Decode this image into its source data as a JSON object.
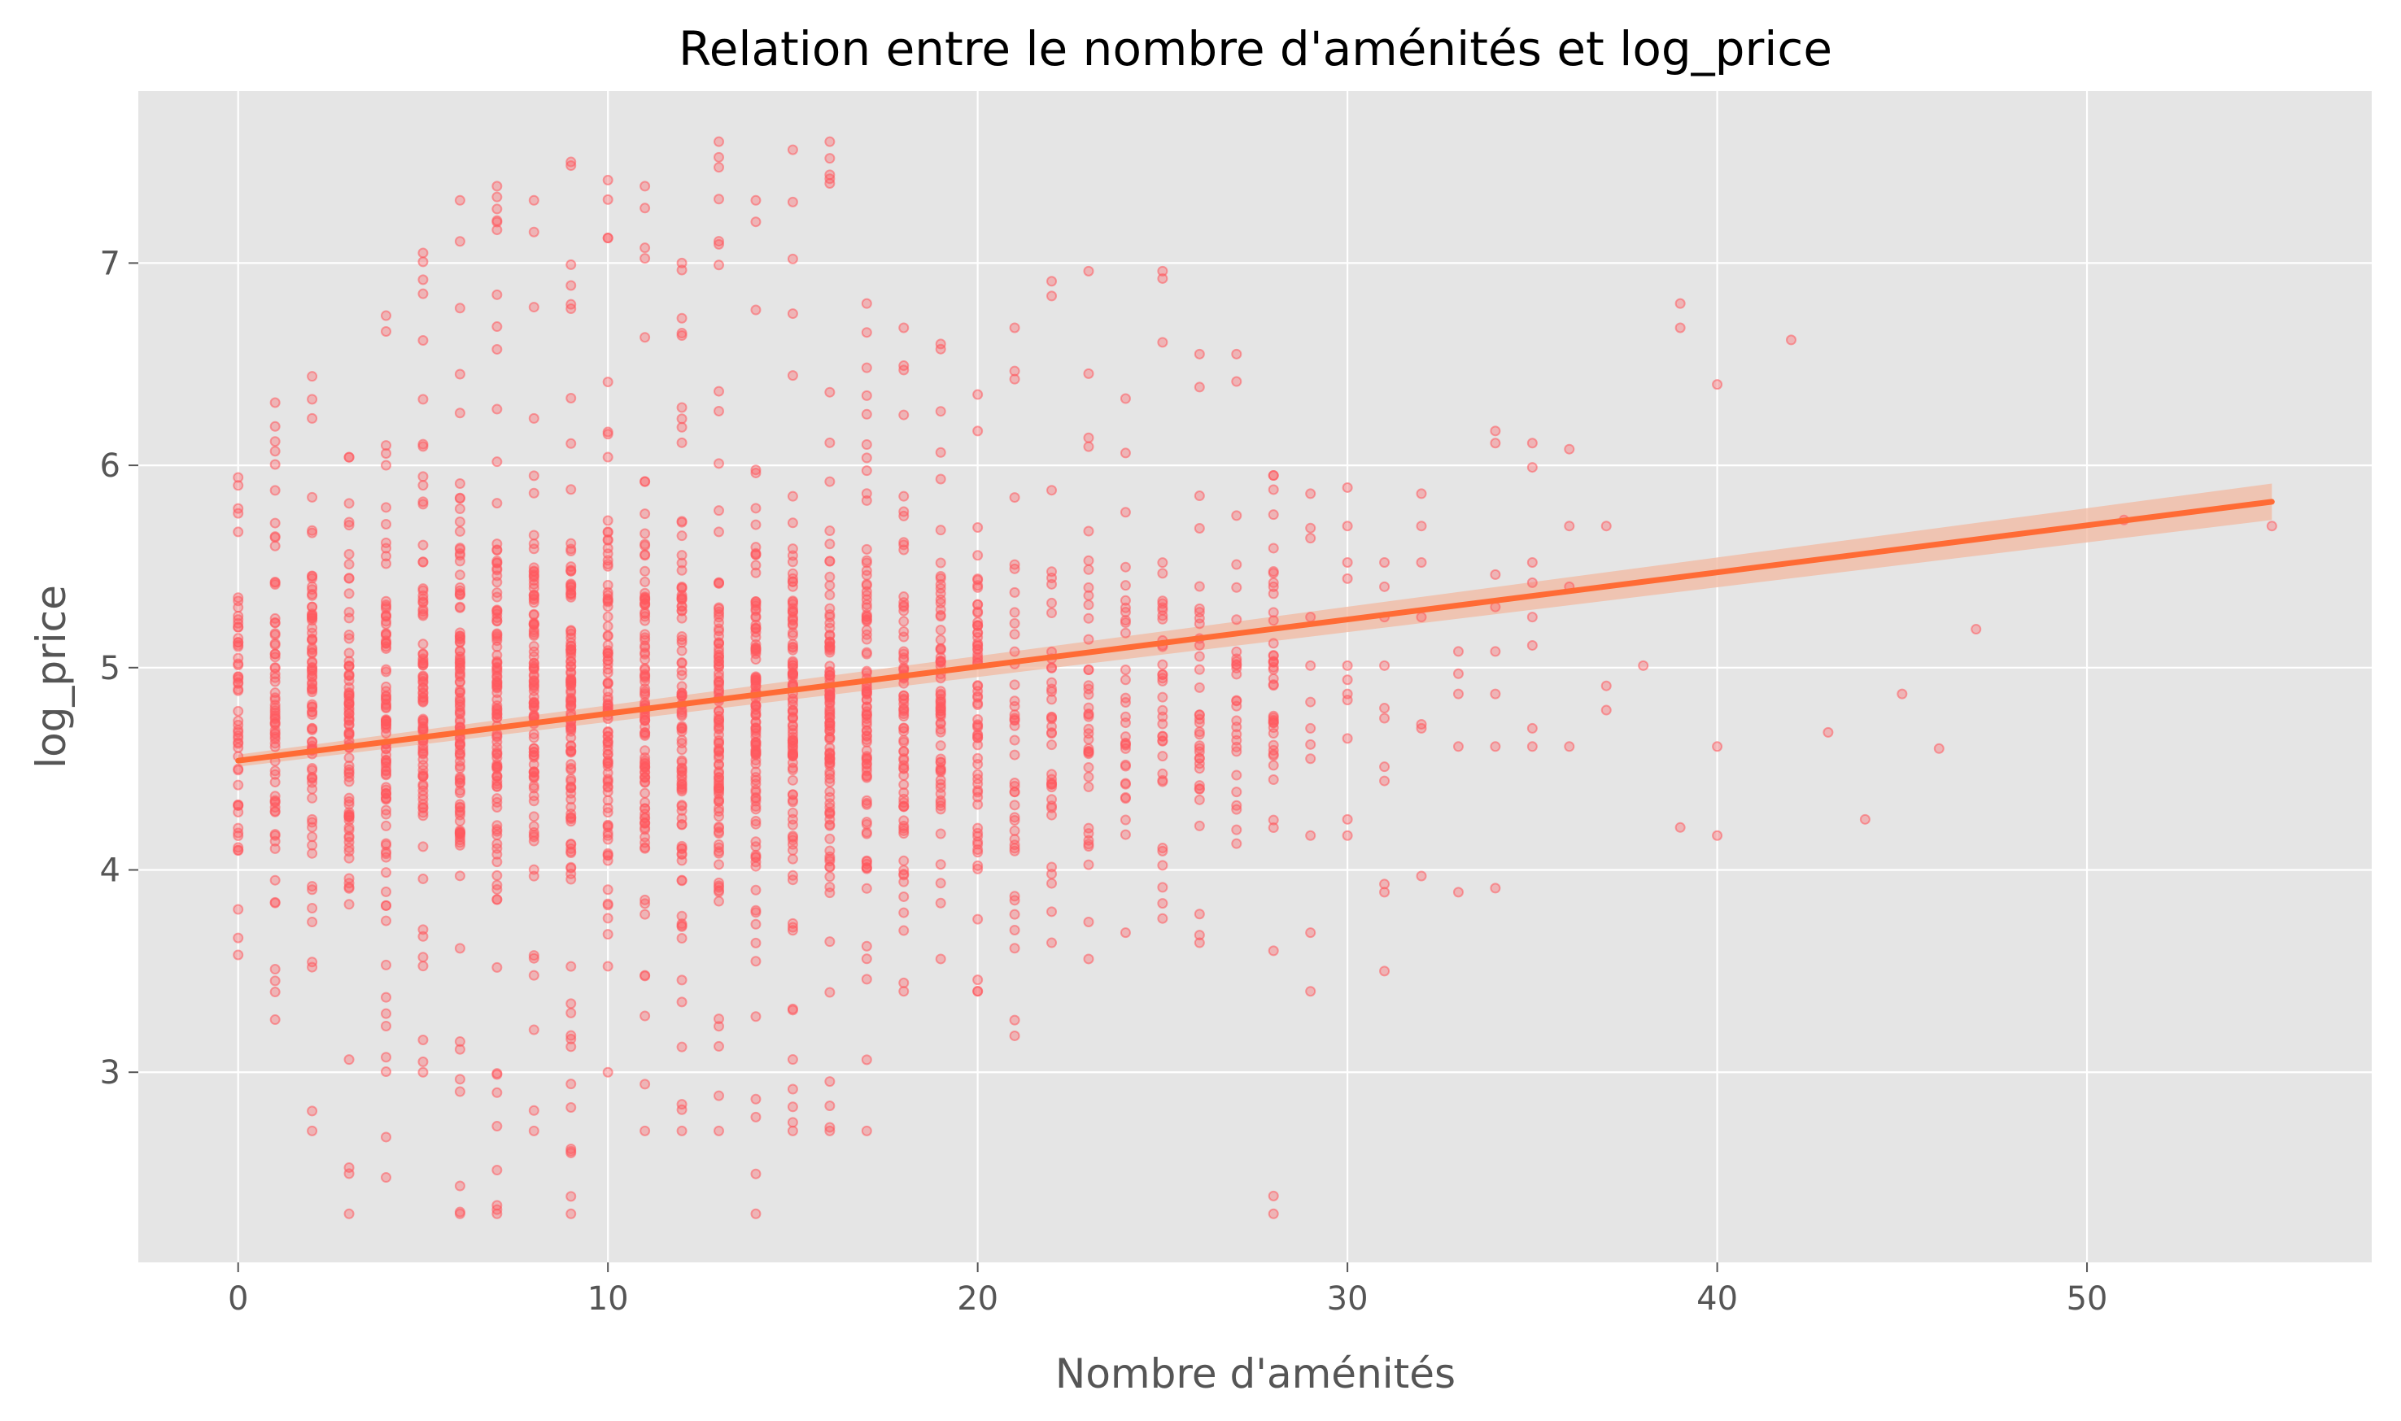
{
  "chart_data": {
    "type": "scatter",
    "title": "Relation entre le nombre d'aménités et log_price",
    "xlabel": "Nombre d'aménités",
    "ylabel": "log_price",
    "xlim": [
      -2.7,
      57.7
    ],
    "ylim": [
      2.06,
      7.85
    ],
    "x_ticks": [
      0,
      10,
      20,
      30,
      40,
      50
    ],
    "y_ticks": [
      3,
      4,
      5,
      6,
      7
    ],
    "grid": true,
    "colors": {
      "background": "#e5e5e5",
      "points": "#ff5a5f",
      "regression_line": "#ff6b35",
      "confidence_band": "#f2b8a0"
    },
    "regression": {
      "x": [
        0,
        55
      ],
      "y": [
        4.54,
        5.82
      ],
      "ci_lower": [
        4.51,
        5.73
      ],
      "ci_upper": [
        4.57,
        5.91
      ]
    },
    "columns": [
      {
        "x": 0,
        "min": 3.58,
        "max": 5.94
      },
      {
        "x": 1,
        "min": 3.26,
        "max": 6.31
      },
      {
        "x": 2,
        "min": 2.71,
        "max": 6.44
      },
      {
        "x": 3,
        "min": 2.3,
        "max": 6.04
      },
      {
        "x": 4,
        "min": 2.48,
        "max": 6.74
      },
      {
        "x": 5,
        "min": 3.0,
        "max": 7.05
      },
      {
        "x": 6,
        "min": 2.3,
        "max": 7.31
      },
      {
        "x": 7,
        "min": 2.3,
        "max": 7.38
      },
      {
        "x": 8,
        "min": 2.71,
        "max": 7.31
      },
      {
        "x": 9,
        "min": 2.3,
        "max": 7.5
      },
      {
        "x": 10,
        "min": 3.0,
        "max": 7.41
      },
      {
        "x": 11,
        "min": 2.71,
        "max": 7.38
      },
      {
        "x": 12,
        "min": 2.71,
        "max": 7.0
      },
      {
        "x": 13,
        "min": 2.71,
        "max": 7.6
      },
      {
        "x": 14,
        "min": 2.3,
        "max": 7.31
      },
      {
        "x": 15,
        "min": 2.71,
        "max": 7.56
      },
      {
        "x": 16,
        "min": 2.71,
        "max": 7.6
      },
      {
        "x": 17,
        "min": 2.71,
        "max": 6.8
      },
      {
        "x": 18,
        "min": 3.4,
        "max": 6.68
      },
      {
        "x": 19,
        "min": 3.56,
        "max": 6.6
      },
      {
        "x": 20,
        "min": 3.4,
        "max": 6.35
      },
      {
        "x": 21,
        "min": 3.18,
        "max": 6.68
      },
      {
        "x": 22,
        "min": 3.64,
        "max": 6.91
      },
      {
        "x": 23,
        "min": 3.56,
        "max": 6.96
      },
      {
        "x": 24,
        "min": 3.69,
        "max": 6.33
      },
      {
        "x": 25,
        "min": 3.76,
        "max": 6.96
      },
      {
        "x": 26,
        "min": 3.64,
        "max": 6.55
      },
      {
        "x": 27,
        "min": 4.13,
        "max": 6.55
      },
      {
        "x": 28,
        "min": 2.3,
        "max": 5.95
      }
    ],
    "points": [
      {
        "x": 29,
        "y": 5.86
      },
      {
        "x": 29,
        "y": 5.69
      },
      {
        "x": 29,
        "y": 5.64
      },
      {
        "x": 29,
        "y": 5.25
      },
      {
        "x": 29,
        "y": 5.01
      },
      {
        "x": 29,
        "y": 4.83
      },
      {
        "x": 29,
        "y": 4.7
      },
      {
        "x": 29,
        "y": 4.62
      },
      {
        "x": 29,
        "y": 4.55
      },
      {
        "x": 29,
        "y": 4.17
      },
      {
        "x": 29,
        "y": 3.69
      },
      {
        "x": 29,
        "y": 3.4
      },
      {
        "x": 30,
        "y": 5.89
      },
      {
        "x": 30,
        "y": 5.7
      },
      {
        "x": 30,
        "y": 5.52
      },
      {
        "x": 30,
        "y": 5.44
      },
      {
        "x": 30,
        "y": 5.01
      },
      {
        "x": 30,
        "y": 4.94
      },
      {
        "x": 30,
        "y": 4.87
      },
      {
        "x": 30,
        "y": 4.84
      },
      {
        "x": 30,
        "y": 4.65
      },
      {
        "x": 30,
        "y": 4.25
      },
      {
        "x": 30,
        "y": 4.17
      },
      {
        "x": 31,
        "y": 5.52
      },
      {
        "x": 31,
        "y": 5.4
      },
      {
        "x": 31,
        "y": 5.25
      },
      {
        "x": 31,
        "y": 5.01
      },
      {
        "x": 31,
        "y": 4.8
      },
      {
        "x": 31,
        "y": 4.75
      },
      {
        "x": 31,
        "y": 4.51
      },
      {
        "x": 31,
        "y": 4.44
      },
      {
        "x": 31,
        "y": 3.93
      },
      {
        "x": 31,
        "y": 3.89
      },
      {
        "x": 31,
        "y": 3.5
      },
      {
        "x": 32,
        "y": 5.86
      },
      {
        "x": 32,
        "y": 5.7
      },
      {
        "x": 32,
        "y": 5.52
      },
      {
        "x": 32,
        "y": 5.25
      },
      {
        "x": 32,
        "y": 4.72
      },
      {
        "x": 32,
        "y": 4.7
      },
      {
        "x": 32,
        "y": 3.97
      },
      {
        "x": 33,
        "y": 5.08
      },
      {
        "x": 33,
        "y": 4.97
      },
      {
        "x": 33,
        "y": 4.87
      },
      {
        "x": 33,
        "y": 4.61
      },
      {
        "x": 33,
        "y": 3.89
      },
      {
        "x": 34,
        "y": 6.17
      },
      {
        "x": 34,
        "y": 6.11
      },
      {
        "x": 34,
        "y": 5.46
      },
      {
        "x": 34,
        "y": 5.3
      },
      {
        "x": 34,
        "y": 5.08
      },
      {
        "x": 34,
        "y": 4.87
      },
      {
        "x": 34,
        "y": 4.61
      },
      {
        "x": 34,
        "y": 3.91
      },
      {
        "x": 35,
        "y": 6.11
      },
      {
        "x": 35,
        "y": 5.99
      },
      {
        "x": 35,
        "y": 5.52
      },
      {
        "x": 35,
        "y": 5.42
      },
      {
        "x": 35,
        "y": 5.25
      },
      {
        "x": 35,
        "y": 5.11
      },
      {
        "x": 35,
        "y": 4.7
      },
      {
        "x": 35,
        "y": 4.61
      },
      {
        "x": 36,
        "y": 6.08
      },
      {
        "x": 36,
        "y": 5.7
      },
      {
        "x": 36,
        "y": 5.4
      },
      {
        "x": 36,
        "y": 4.61
      },
      {
        "x": 37,
        "y": 5.7
      },
      {
        "x": 37,
        "y": 4.91
      },
      {
        "x": 37,
        "y": 4.79
      },
      {
        "x": 38,
        "y": 5.01
      },
      {
        "x": 39,
        "y": 6.8
      },
      {
        "x": 39,
        "y": 6.68
      },
      {
        "x": 39,
        "y": 4.21
      },
      {
        "x": 40,
        "y": 6.4
      },
      {
        "x": 40,
        "y": 4.61
      },
      {
        "x": 40,
        "y": 4.17
      },
      {
        "x": 42,
        "y": 6.62
      },
      {
        "x": 43,
        "y": 4.68
      },
      {
        "x": 44,
        "y": 4.25
      },
      {
        "x": 45,
        "y": 4.87
      },
      {
        "x": 46,
        "y": 4.6
      },
      {
        "x": 47,
        "y": 5.19
      },
      {
        "x": 51,
        "y": 5.73
      },
      {
        "x": 55,
        "y": 5.7
      }
    ]
  }
}
